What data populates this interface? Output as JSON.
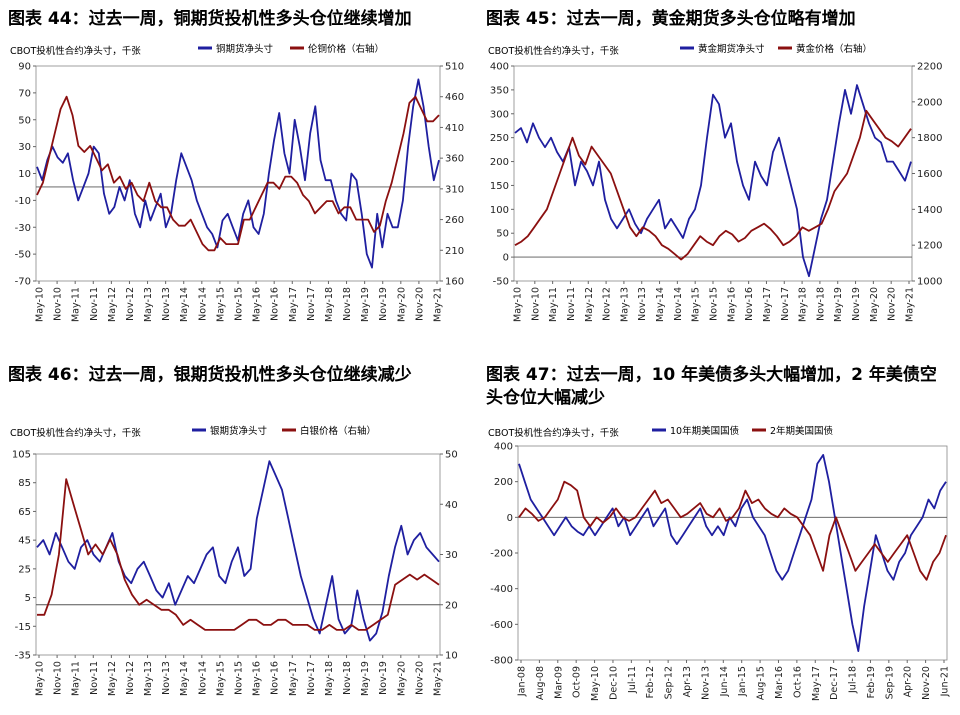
{
  "charts": [
    {
      "title": "图表 44：过去一周，铜期货投机性多头仓位继续增加",
      "unit_note": "CBOT投机性合约净头寸，千张",
      "legend": [
        "铜期货净头寸",
        "伦铜价格（右轴）"
      ],
      "colors": [
        "#1f1fa0",
        "#8b1010"
      ],
      "x_ticks": [
        "May-10",
        "Nov-10",
        "May-11",
        "Nov-11",
        "May-12",
        "Nov-12",
        "May-13",
        "Nov-13",
        "May-14",
        "Nov-14",
        "May-15",
        "Nov-15",
        "May-16",
        "Nov-16",
        "May-17",
        "Nov-17",
        "May-18",
        "Nov-18",
        "May-19",
        "Nov-19",
        "May-20",
        "Nov-20",
        "May-21"
      ],
      "left_axis": {
        "min": -70,
        "max": 90,
        "ticks": [
          90,
          70,
          50,
          30,
          10,
          -10,
          -30,
          -50,
          -70
        ]
      },
      "right_axis": {
        "min": 160,
        "max": 510,
        "ticks": [
          510,
          460,
          410,
          360,
          310,
          260,
          210,
          160
        ]
      }
    },
    {
      "title": "图表 45：过去一周，黄金期货多头仓位略有增加",
      "unit_note": "CBOT投机性合约净头寸，千张",
      "legend": [
        "黄金期货净头寸",
        "黄金价格（右轴）"
      ],
      "colors": [
        "#1f1fa0",
        "#8b1010"
      ],
      "x_ticks": [
        "May-10",
        "Nov-10",
        "May-11",
        "Nov-11",
        "May-12",
        "Nov-12",
        "May-13",
        "Nov-13",
        "May-14",
        "Nov-14",
        "May-15",
        "Nov-15",
        "May-16",
        "Nov-16",
        "May-17",
        "Nov-17",
        "May-18",
        "Nov-18",
        "May-19",
        "Nov-19",
        "May-20",
        "Nov-20",
        "May-21"
      ],
      "left_axis": {
        "min": -50,
        "max": 400,
        "ticks": [
          400,
          350,
          300,
          250,
          200,
          150,
          100,
          50,
          0,
          -50
        ]
      },
      "right_axis": {
        "min": 1000,
        "max": 2200,
        "ticks": [
          2200,
          2000,
          1800,
          1600,
          1400,
          1200,
          1000
        ]
      }
    },
    {
      "title": "图表 46：过去一周，银期货投机性多头仓位继续减少",
      "unit_note": "CBOT投机性合约净头寸，千张",
      "legend": [
        "银期货净头寸",
        "白银价格（右轴）"
      ],
      "colors": [
        "#1f1fa0",
        "#8b1010"
      ],
      "x_ticks": [
        "May-10",
        "Nov-10",
        "May-11",
        "Nov-11",
        "May-12",
        "Nov-12",
        "May-13",
        "Nov-13",
        "May-14",
        "Nov-14",
        "May-15",
        "Nov-15",
        "May-16",
        "Nov-16",
        "May-17",
        "Nov-17",
        "May-18",
        "Nov-18",
        "May-19",
        "Nov-19",
        "May-20",
        "Nov-20",
        "May-21"
      ],
      "left_axis": {
        "min": -35,
        "max": 105,
        "ticks": [
          105,
          85,
          65,
          45,
          25,
          5,
          -15,
          -35
        ]
      },
      "right_axis": {
        "min": 10,
        "max": 50,
        "ticks": [
          50,
          40,
          30,
          20,
          10
        ]
      }
    },
    {
      "title": "图表 47：过去一周，10 年美债多头大幅增加，2 年美债空头仓位大幅减少",
      "unit_note": "CBOT投机性合约净头寸，千张",
      "legend": [
        "10年期美国国债",
        "2年期美国国债"
      ],
      "colors": [
        "#1f1fa0",
        "#8b1010"
      ],
      "x_ticks": [
        "Jan-08",
        "Aug-08",
        "Mar-09",
        "Oct-09",
        "May-10",
        "Dec-10",
        "Jul-11",
        "Feb-12",
        "Sep-12",
        "Apr-13",
        "Nov-13",
        "Jun-14",
        "Jan-15",
        "Aug-15",
        "Mar-16",
        "Oct-16",
        "May-17",
        "Dec-17",
        "Jul-18",
        "Feb-19",
        "Sep-19",
        "Apr-20",
        "Nov-20",
        "Jun-21"
      ],
      "left_axis": {
        "min": -800,
        "max": 400,
        "ticks": [
          400,
          200,
          0,
          -200,
          -400,
          -600,
          -800
        ]
      },
      "right_axis": null
    }
  ],
  "chart_data": [
    {
      "type": "line",
      "title": "图表 44：过去一周，铜期货投机性多头仓位继续增加",
      "ylabel": "CBOT投机性合约净头寸，千张",
      "x_start": "May-10",
      "x_end": "Jun-21",
      "ylim": [
        -70,
        90
      ],
      "y2lim": [
        160,
        510
      ],
      "series": [
        {
          "name": "铜期货净头寸",
          "axis": "left",
          "values": [
            15,
            5,
            20,
            30,
            22,
            18,
            25,
            5,
            -10,
            0,
            10,
            30,
            25,
            -5,
            -20,
            -15,
            0,
            -10,
            5,
            -20,
            -30,
            -10,
            -25,
            -15,
            -5,
            -30,
            -20,
            5,
            25,
            15,
            5,
            -10,
            -20,
            -30,
            -35,
            -45,
            -25,
            -20,
            -30,
            -40,
            -20,
            -10,
            -30,
            -35,
            -20,
            10,
            35,
            55,
            25,
            10,
            50,
            30,
            5,
            40,
            60,
            20,
            5,
            5,
            -10,
            -20,
            -25,
            10,
            5,
            -20,
            -50,
            -60,
            -20,
            -45,
            -20,
            -30,
            -30,
            -10,
            30,
            60,
            80,
            60,
            30,
            5,
            20
          ]
        },
        {
          "name": "伦铜价格（右轴）",
          "axis": "right",
          "values": [
            300,
            320,
            360,
            400,
            440,
            460,
            430,
            380,
            370,
            380,
            360,
            340,
            350,
            320,
            330,
            310,
            320,
            300,
            290,
            320,
            290,
            280,
            280,
            260,
            250,
            250,
            260,
            240,
            220,
            210,
            210,
            230,
            220,
            220,
            220,
            260,
            260,
            280,
            300,
            320,
            320,
            310,
            330,
            330,
            320,
            300,
            290,
            270,
            280,
            290,
            290,
            270,
            280,
            280,
            260,
            260,
            260,
            240,
            250,
            290,
            320,
            360,
            400,
            450,
            460,
            440,
            420,
            420,
            430
          ]
        }
      ]
    },
    {
      "type": "line",
      "title": "图表 45：过去一周，黄金期货多头仓位略有增加",
      "ylabel": "CBOT投机性合约净头寸，千张",
      "x_start": "May-10",
      "x_end": "Jun-21",
      "ylim": [
        -50,
        400
      ],
      "y2lim": [
        1000,
        2200
      ],
      "series": [
        {
          "name": "黄金期货净头寸",
          "axis": "left",
          "values": [
            260,
            270,
            240,
            280,
            250,
            230,
            250,
            220,
            200,
            230,
            150,
            200,
            180,
            150,
            200,
            120,
            80,
            60,
            80,
            100,
            70,
            50,
            80,
            100,
            120,
            60,
            80,
            60,
            40,
            80,
            100,
            150,
            250,
            340,
            320,
            250,
            280,
            200,
            150,
            120,
            200,
            170,
            150,
            220,
            250,
            200,
            150,
            100,
            0,
            -40,
            20,
            80,
            120,
            200,
            280,
            350,
            300,
            360,
            320,
            280,
            250,
            240,
            200,
            200,
            180,
            160,
            200
          ]
        },
        {
          "name": "黄金价格（右轴）",
          "axis": "right",
          "values": [
            1200,
            1220,
            1250,
            1300,
            1350,
            1400,
            1500,
            1600,
            1700,
            1800,
            1700,
            1650,
            1750,
            1700,
            1650,
            1600,
            1500,
            1400,
            1300,
            1250,
            1300,
            1280,
            1250,
            1200,
            1180,
            1150,
            1120,
            1150,
            1200,
            1250,
            1220,
            1200,
            1250,
            1280,
            1260,
            1220,
            1240,
            1280,
            1300,
            1320,
            1290,
            1250,
            1200,
            1220,
            1250,
            1300,
            1280,
            1300,
            1320,
            1400,
            1500,
            1550,
            1600,
            1700,
            1800,
            1950,
            1900,
            1850,
            1800,
            1780,
            1750,
            1800,
            1850
          ]
        }
      ]
    },
    {
      "type": "line",
      "title": "图表 46：过去一周，银期货投机性多头仓位继续减少",
      "ylabel": "CBOT投机性合约净头寸，千张",
      "x_start": "May-10",
      "x_end": "Jun-21",
      "ylim": [
        -35,
        105
      ],
      "y2lim": [
        10,
        50
      ],
      "series": [
        {
          "name": "银期货净头寸",
          "axis": "left",
          "values": [
            40,
            45,
            35,
            50,
            40,
            30,
            25,
            40,
            45,
            35,
            30,
            40,
            50,
            30,
            20,
            15,
            25,
            30,
            20,
            10,
            5,
            15,
            0,
            10,
            20,
            15,
            25,
            35,
            40,
            20,
            15,
            30,
            40,
            20,
            25,
            60,
            80,
            100,
            90,
            80,
            60,
            40,
            20,
            5,
            -10,
            -20,
            0,
            20,
            -10,
            -20,
            -15,
            10,
            -10,
            -25,
            -20,
            -5,
            20,
            40,
            55,
            35,
            45,
            50,
            40,
            35,
            30
          ]
        },
        {
          "name": "白银价格（右轴）",
          "axis": "right",
          "values": [
            18,
            18,
            22,
            30,
            45,
            40,
            35,
            30,
            32,
            30,
            33,
            30,
            25,
            22,
            20,
            21,
            20,
            19,
            19,
            18,
            16,
            17,
            16,
            15,
            15,
            15,
            15,
            15,
            16,
            17,
            17,
            16,
            16,
            17,
            17,
            16,
            16,
            16,
            15,
            15,
            16,
            15,
            15,
            16,
            15,
            15,
            16,
            17,
            18,
            24,
            25,
            26,
            25,
            26,
            25,
            24
          ]
        }
      ]
    },
    {
      "type": "line",
      "title": "图表 47：过去一周，10 年美债多头大幅增加，2 年美债空头仓位大幅减少",
      "ylabel": "CBOT投机性合约净头寸，千张",
      "x_start": "Jan-08",
      "x_end": "Jun-21",
      "ylim": [
        -800,
        400
      ],
      "series": [
        {
          "name": "10年期美国国债",
          "axis": "left",
          "values": [
            300,
            200,
            100,
            50,
            0,
            -50,
            -100,
            -50,
            0,
            -50,
            -80,
            -100,
            -50,
            -100,
            -50,
            0,
            50,
            -50,
            0,
            -100,
            -50,
            0,
            50,
            -50,
            0,
            50,
            -100,
            -150,
            -100,
            -50,
            0,
            50,
            -50,
            -100,
            -50,
            -100,
            0,
            -50,
            50,
            100,
            0,
            -50,
            -100,
            -200,
            -300,
            -350,
            -300,
            -200,
            -100,
            0,
            100,
            300,
            350,
            200,
            0,
            -200,
            -400,
            -600,
            -750,
            -500,
            -300,
            -100,
            -200,
            -300,
            -350,
            -250,
            -200,
            -100,
            -50,
            0,
            100,
            50,
            150,
            200
          ]
        },
        {
          "name": "2年期美国国债",
          "axis": "left",
          "values": [
            0,
            50,
            20,
            -20,
            0,
            50,
            100,
            200,
            180,
            150,
            0,
            -50,
            0,
            -30,
            0,
            50,
            0,
            -20,
            0,
            50,
            100,
            150,
            80,
            100,
            50,
            0,
            20,
            50,
            80,
            20,
            0,
            50,
            -20,
            0,
            50,
            150,
            80,
            100,
            50,
            20,
            0,
            50,
            20,
            0,
            -50,
            -100,
            -200,
            -300,
            -100,
            0,
            -100,
            -200,
            -300,
            -250,
            -200,
            -150,
            -200,
            -250,
            -200,
            -150,
            -100,
            -200,
            -300,
            -350,
            -250,
            -200,
            -100
          ]
        }
      ]
    }
  ]
}
